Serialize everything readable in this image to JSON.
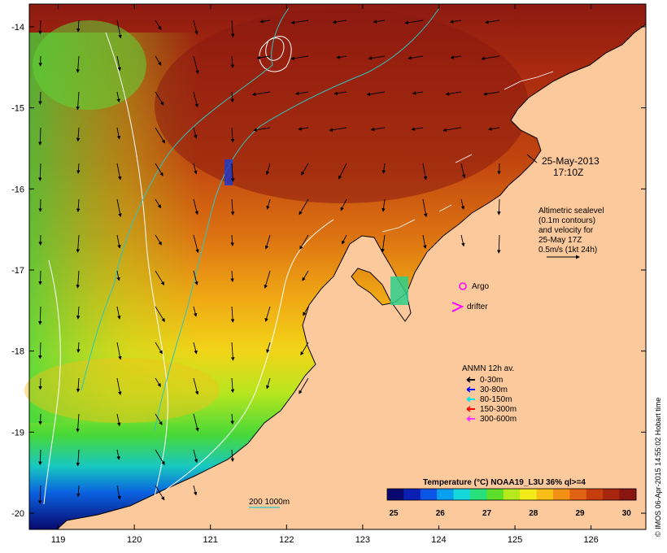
{
  "timestamp": {
    "date": "25-May-2013",
    "time": "17:10Z"
  },
  "altimetry": {
    "lines": [
      "Altimetric sealevel",
      "(0.1m contours)",
      "and velocity for",
      "25-May 17Z"
    ],
    "scale": "0.5m/s (1kt 24h)"
  },
  "markers": {
    "argo": "Argo",
    "drifter": "drifter"
  },
  "anmn": {
    "title": "ANMN 12h av.",
    "items": [
      {
        "label": "0-30m",
        "color": "#000000"
      },
      {
        "label": "30-80m",
        "color": "#0000ff"
      },
      {
        "label": "80-150m",
        "color": "#00e5e5"
      },
      {
        "label": "150-300m",
        "color": "#ff0000"
      },
      {
        "label": "300-600m",
        "color": "#ff33ff"
      }
    ]
  },
  "depth_legend": "200  1000m",
  "colorbar": {
    "title": "Temperature (°C) NOAA19_L3U 36% ql>=4",
    "ticks": [
      "25",
      "26",
      "27",
      "28",
      "29",
      "30"
    ],
    "min": 25,
    "max": 30.1,
    "colors": [
      "#08086e",
      "#0a1fb4",
      "#0b55e6",
      "#0aa0f0",
      "#15d8d8",
      "#28e07a",
      "#5de02a",
      "#b8e81e",
      "#f4ea18",
      "#f8c016",
      "#f29014",
      "#e06212",
      "#c63e0e",
      "#a82510",
      "#8a1510"
    ]
  },
  "axes": {
    "x_ticks": [
      "119",
      "120",
      "121",
      "122",
      "123",
      "124",
      "125",
      "126"
    ],
    "y_ticks": [
      "-14",
      "-15",
      "-16",
      "-17",
      "-18",
      "-19",
      "-20"
    ]
  },
  "credit": "© IMOS 06-Apr-2015 14:55:02 Hobart time",
  "colors": {
    "land": "#fcc99c",
    "contour": "#ffffff",
    "isobath": "#2ec4c4"
  }
}
